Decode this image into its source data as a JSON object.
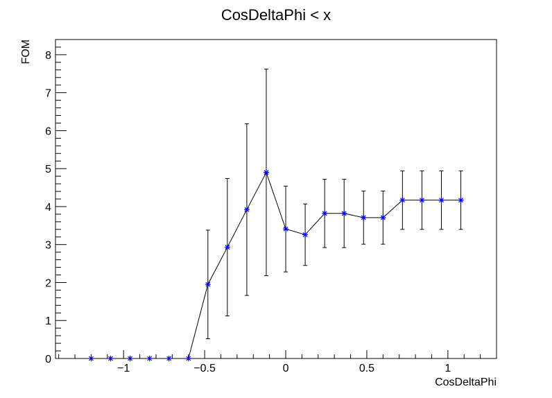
{
  "chart_data": {
    "type": "scatter",
    "title": "CosDeltaPhi < x",
    "xlabel": "CosDeltaPhi",
    "ylabel": "FOM",
    "xlim": [
      -1.42,
      1.3
    ],
    "ylim": [
      0,
      8.4
    ],
    "x_ticks": [
      -1,
      -0.5,
      0,
      0.5,
      1
    ],
    "x_tick_labels": [
      "−1",
      "−0.5",
      "0",
      "0.5",
      "1"
    ],
    "y_ticks": [
      0,
      1,
      2,
      3,
      4,
      5,
      6,
      7,
      8
    ],
    "y_tick_labels": [
      "0",
      "1",
      "2",
      "3",
      "4",
      "5",
      "6",
      "7",
      "8"
    ],
    "grid": false,
    "marker": "asterisk",
    "marker_color": "#0000ff",
    "line_color": "#000000",
    "series": [
      {
        "x": [
          -1.2,
          -1.08,
          -0.96,
          -0.84,
          -0.72,
          -0.6,
          -0.48,
          -0.36,
          -0.24,
          -0.12,
          0.0,
          0.12,
          0.24,
          0.36,
          0.48,
          0.6,
          0.72,
          0.84,
          0.96,
          1.08
        ],
        "y": [
          0,
          0,
          0,
          0,
          0,
          0,
          1.95,
          2.93,
          3.92,
          4.9,
          3.41,
          3.26,
          3.82,
          3.82,
          3.71,
          3.71,
          4.17,
          4.17,
          4.17,
          4.17
        ],
        "err": [
          0,
          0,
          0,
          0,
          0,
          0,
          1.43,
          1.81,
          2.26,
          2.72,
          1.13,
          0.81,
          0.9,
          0.9,
          0.7,
          0.7,
          0.77,
          0.77,
          0.77,
          0.77
        ]
      }
    ]
  }
}
